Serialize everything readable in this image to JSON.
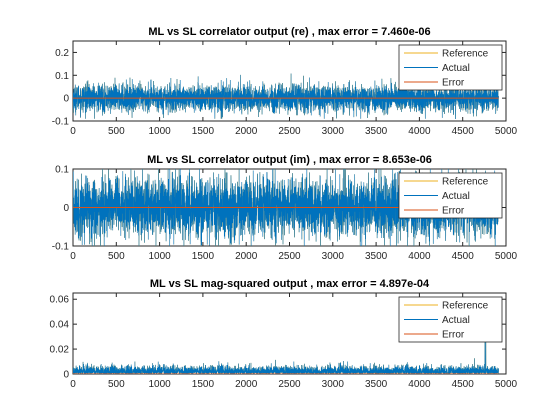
{
  "colors": {
    "reference": "#EDB120",
    "actual": "#0072BD",
    "error": "#D95319",
    "axis": "#262626"
  },
  "chart_data": [
    {
      "type": "line",
      "title": "ML vs SL correlator output (re) , max error = 7.460e-06",
      "xlim": [
        0,
        5000
      ],
      "ylim": [
        -0.1,
        0.25
      ],
      "xticks": [
        "0",
        "500",
        "1000",
        "1500",
        "2000",
        "2500",
        "3000",
        "3500",
        "4000",
        "4500",
        "5000"
      ],
      "yticks": [
        "-0.1",
        "0",
        "0.1",
        "0.2"
      ],
      "legend_position": "top-right",
      "series": [
        {
          "name": "Reference",
          "color": "#EDB120",
          "description": "noise-like signal, ~4900 samples, mostly within ±0.07, peaks ≈0.1",
          "n_points": 4915,
          "approx_range": [
            -0.09,
            0.11
          ]
        },
        {
          "name": "Actual",
          "color": "#0072BD",
          "description": "overlays Reference",
          "n_points": 4915,
          "approx_range": [
            -0.09,
            0.11
          ]
        },
        {
          "name": "Error",
          "color": "#D95319",
          "description": "≈0 everywhere",
          "n_points": 4915,
          "approx_range": [
            0,
            0
          ]
        }
      ]
    },
    {
      "type": "line",
      "title": "ML vs SL correlator output (im) , max error = 8.653e-06",
      "xlim": [
        0,
        5000
      ],
      "ylim": [
        -0.1,
        0.1
      ],
      "xticks": [
        "0",
        "500",
        "1000",
        "1500",
        "2000",
        "2500",
        "3000",
        "3500",
        "4000",
        "4500",
        "5000"
      ],
      "yticks": [
        "-0.1",
        "0",
        "0.1"
      ],
      "legend_position": "top-right",
      "series": [
        {
          "name": "Reference",
          "color": "#EDB120",
          "description": "noise-like signal, ~4900 samples, spanning roughly ±0.1",
          "n_points": 4915,
          "approx_range": [
            -0.1,
            0.1
          ]
        },
        {
          "name": "Actual",
          "color": "#0072BD",
          "description": "overlays Reference",
          "n_points": 4915,
          "approx_range": [
            -0.1,
            0.1
          ]
        },
        {
          "name": "Error",
          "color": "#D95319",
          "description": "≈0 everywhere",
          "n_points": 4915,
          "approx_range": [
            0,
            0
          ]
        }
      ]
    },
    {
      "type": "line",
      "title": "ML vs SL mag-squared output , max error = 4.897e-04",
      "xlim": [
        0,
        5000
      ],
      "ylim": [
        0,
        0.065
      ],
      "xticks": [
        "0",
        "500",
        "1000",
        "1500",
        "2000",
        "2500",
        "3000",
        "3500",
        "4000",
        "4500",
        "5000"
      ],
      "yticks": [
        "0",
        "0.02",
        "0.04",
        "0.06"
      ],
      "legend_position": "top-right",
      "series": [
        {
          "name": "Reference",
          "color": "#EDB120",
          "description": "non-negative signal, mostly below 0.01, isolated spikes up to ≈0.045 near x≈4800",
          "n_points": 4915,
          "approx_range": [
            0,
            0.045
          ]
        },
        {
          "name": "Actual",
          "color": "#0072BD",
          "description": "overlays Reference",
          "n_points": 4915,
          "approx_range": [
            0,
            0.045
          ]
        },
        {
          "name": "Error",
          "color": "#D95319",
          "description": "≈0 everywhere",
          "n_points": 4915,
          "approx_range": [
            0,
            0
          ]
        }
      ]
    }
  ]
}
